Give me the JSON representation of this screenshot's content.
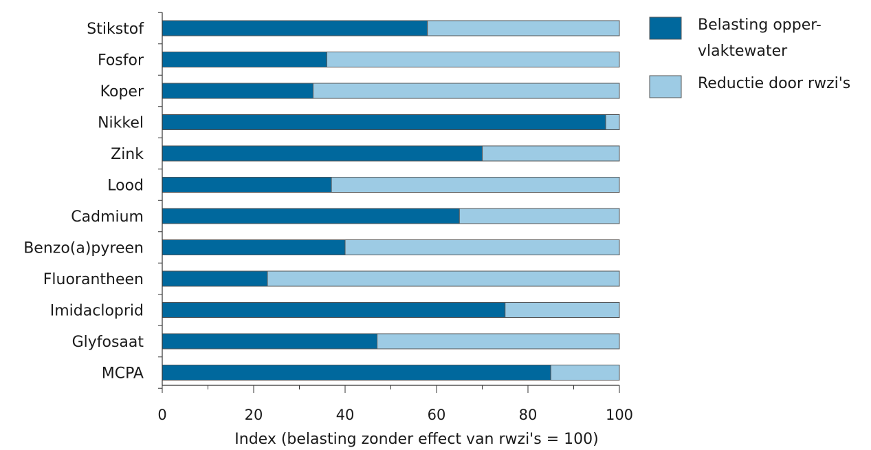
{
  "chart_data": {
    "type": "bar",
    "orientation": "horizontal",
    "stacked": true,
    "categories": [
      "Stikstof",
      "Fosfor",
      "Koper",
      "Nikkel",
      "Zink",
      "Lood",
      "Cadmium",
      "Benzo(a)pyreen",
      "Fluorantheen",
      "Imidacloprid",
      "Glyfosaat",
      "MCPA"
    ],
    "series": [
      {
        "name": "Belasting opper-vlaktewater",
        "legend_lines": [
          "Belasting opper-",
          "vlaktewater"
        ],
        "color": "#00689d",
        "values": [
          58,
          36,
          33,
          97,
          70,
          37,
          65,
          40,
          23,
          75,
          47,
          85
        ]
      },
      {
        "name": "Reductie door rwzi's",
        "legend_lines": [
          "Reductie door rwzi's"
        ],
        "color": "#9dcbe4",
        "values": [
          42,
          64,
          67,
          3,
          30,
          63,
          35,
          60,
          77,
          25,
          53,
          15
        ]
      }
    ],
    "xlabel": "Index (belasting zonder effect van  rwzi's = 100)",
    "ylabel": "",
    "xlim": [
      0,
      100
    ],
    "x_ticks": [
      0,
      20,
      40,
      60,
      80,
      100
    ],
    "x_tick_labels": [
      "0",
      "20",
      "40",
      "60",
      "80",
      "100"
    ],
    "grid": false,
    "legend_position": "top-right"
  }
}
